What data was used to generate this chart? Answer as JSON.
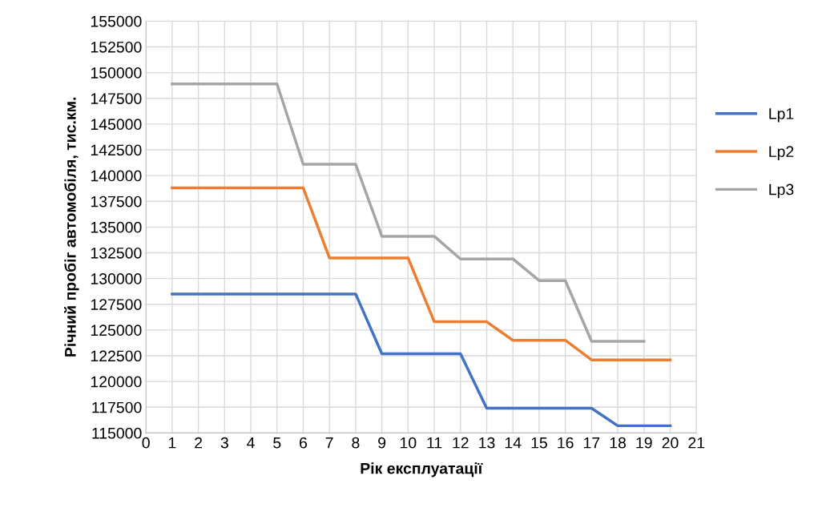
{
  "chart_data": {
    "type": "line",
    "xlabel": "Рік експлуатації",
    "ylabel": "Річний пробіг автомобіля, тис.км.",
    "x": [
      1,
      2,
      3,
      4,
      5,
      6,
      7,
      8,
      9,
      10,
      11,
      12,
      13,
      14,
      15,
      16,
      17,
      18,
      19,
      20
    ],
    "series": [
      {
        "name": "Lp1",
        "color": "#4472c4",
        "values": [
          128500,
          128500,
          128500,
          128500,
          128500,
          128500,
          128500,
          128500,
          122700,
          122700,
          122700,
          122700,
          117400,
          117400,
          117400,
          117400,
          117400,
          115700,
          115700,
          115700
        ]
      },
      {
        "name": "Lp2",
        "color": "#ed7d31",
        "values": [
          138800,
          138800,
          138800,
          138800,
          138800,
          138800,
          132000,
          132000,
          132000,
          132000,
          125800,
          125800,
          125800,
          124000,
          124000,
          124000,
          122100,
          122100,
          122100,
          122100
        ]
      },
      {
        "name": "Lp3",
        "color": "#a5a5a5",
        "values": [
          148900,
          148900,
          148900,
          148900,
          148900,
          141100,
          141100,
          141100,
          134100,
          134100,
          134100,
          131900,
          131900,
          131900,
          129800,
          129800,
          123900,
          123900,
          123900,
          null
        ]
      }
    ],
    "xlim": [
      0,
      21
    ],
    "xticks": [
      0,
      1,
      2,
      3,
      4,
      5,
      6,
      7,
      8,
      9,
      10,
      11,
      12,
      13,
      14,
      15,
      16,
      17,
      18,
      19,
      20,
      21
    ],
    "ylim": [
      115000,
      155000
    ],
    "yticks": [
      115000,
      117500,
      120000,
      122500,
      125000,
      127500,
      130000,
      132500,
      135000,
      137500,
      140000,
      142500,
      145000,
      147500,
      150000,
      152500,
      155000
    ],
    "grid": true,
    "legend": "right",
    "marker": "none",
    "line_style": "solid"
  }
}
